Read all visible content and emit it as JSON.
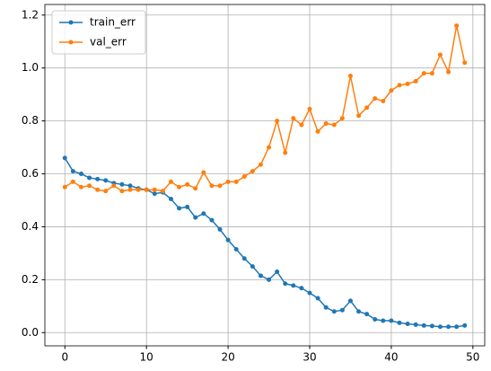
{
  "chart_data": {
    "type": "line",
    "x": [
      0,
      1,
      2,
      3,
      4,
      5,
      6,
      7,
      8,
      9,
      10,
      11,
      12,
      13,
      14,
      15,
      16,
      17,
      18,
      19,
      20,
      21,
      22,
      23,
      24,
      25,
      26,
      27,
      28,
      29,
      30,
      31,
      32,
      33,
      34,
      35,
      36,
      37,
      38,
      39,
      40,
      41,
      42,
      43,
      44,
      45,
      46,
      47,
      48,
      49
    ],
    "series": [
      {
        "name": "train_err",
        "color": "#1f77b4",
        "values": [
          0.66,
          0.61,
          0.6,
          0.585,
          0.58,
          0.575,
          0.565,
          0.56,
          0.555,
          0.545,
          0.54,
          0.525,
          0.53,
          0.505,
          0.47,
          0.475,
          0.435,
          0.45,
          0.425,
          0.39,
          0.35,
          0.315,
          0.28,
          0.25,
          0.215,
          0.2,
          0.23,
          0.185,
          0.178,
          0.168,
          0.15,
          0.13,
          0.095,
          0.08,
          0.085,
          0.12,
          0.08,
          0.07,
          0.05,
          0.045,
          0.045,
          0.037,
          0.033,
          0.03,
          0.027,
          0.025,
          0.022,
          0.022,
          0.022,
          0.027
        ]
      },
      {
        "name": "val_err",
        "color": "#ff7f0e",
        "values": [
          0.55,
          0.57,
          0.55,
          0.555,
          0.54,
          0.535,
          0.555,
          0.535,
          0.54,
          0.54,
          0.54,
          0.54,
          0.535,
          0.57,
          0.55,
          0.56,
          0.545,
          0.605,
          0.555,
          0.555,
          0.57,
          0.57,
          0.59,
          0.61,
          0.635,
          0.7,
          0.8,
          0.68,
          0.81,
          0.785,
          0.845,
          0.76,
          0.79,
          0.785,
          0.81,
          0.97,
          0.82,
          0.85,
          0.885,
          0.875,
          0.915,
          0.935,
          0.94,
          0.95,
          0.98,
          0.98,
          1.05,
          0.985,
          1.16,
          1.02
        ]
      }
    ],
    "xlim": [
      -2.45,
      51.45
    ],
    "ylim": [
      -0.05,
      1.24
    ],
    "xticks": [
      0,
      10,
      20,
      30,
      40,
      50
    ],
    "yticks": [
      {
        "value": 0,
        "label": "0.0"
      },
      0.2,
      0.4,
      0.6,
      0.8,
      {
        "value": 1,
        "label": "1.0"
      },
      1.2
    ],
    "grid": true,
    "legend": "upper-left"
  }
}
